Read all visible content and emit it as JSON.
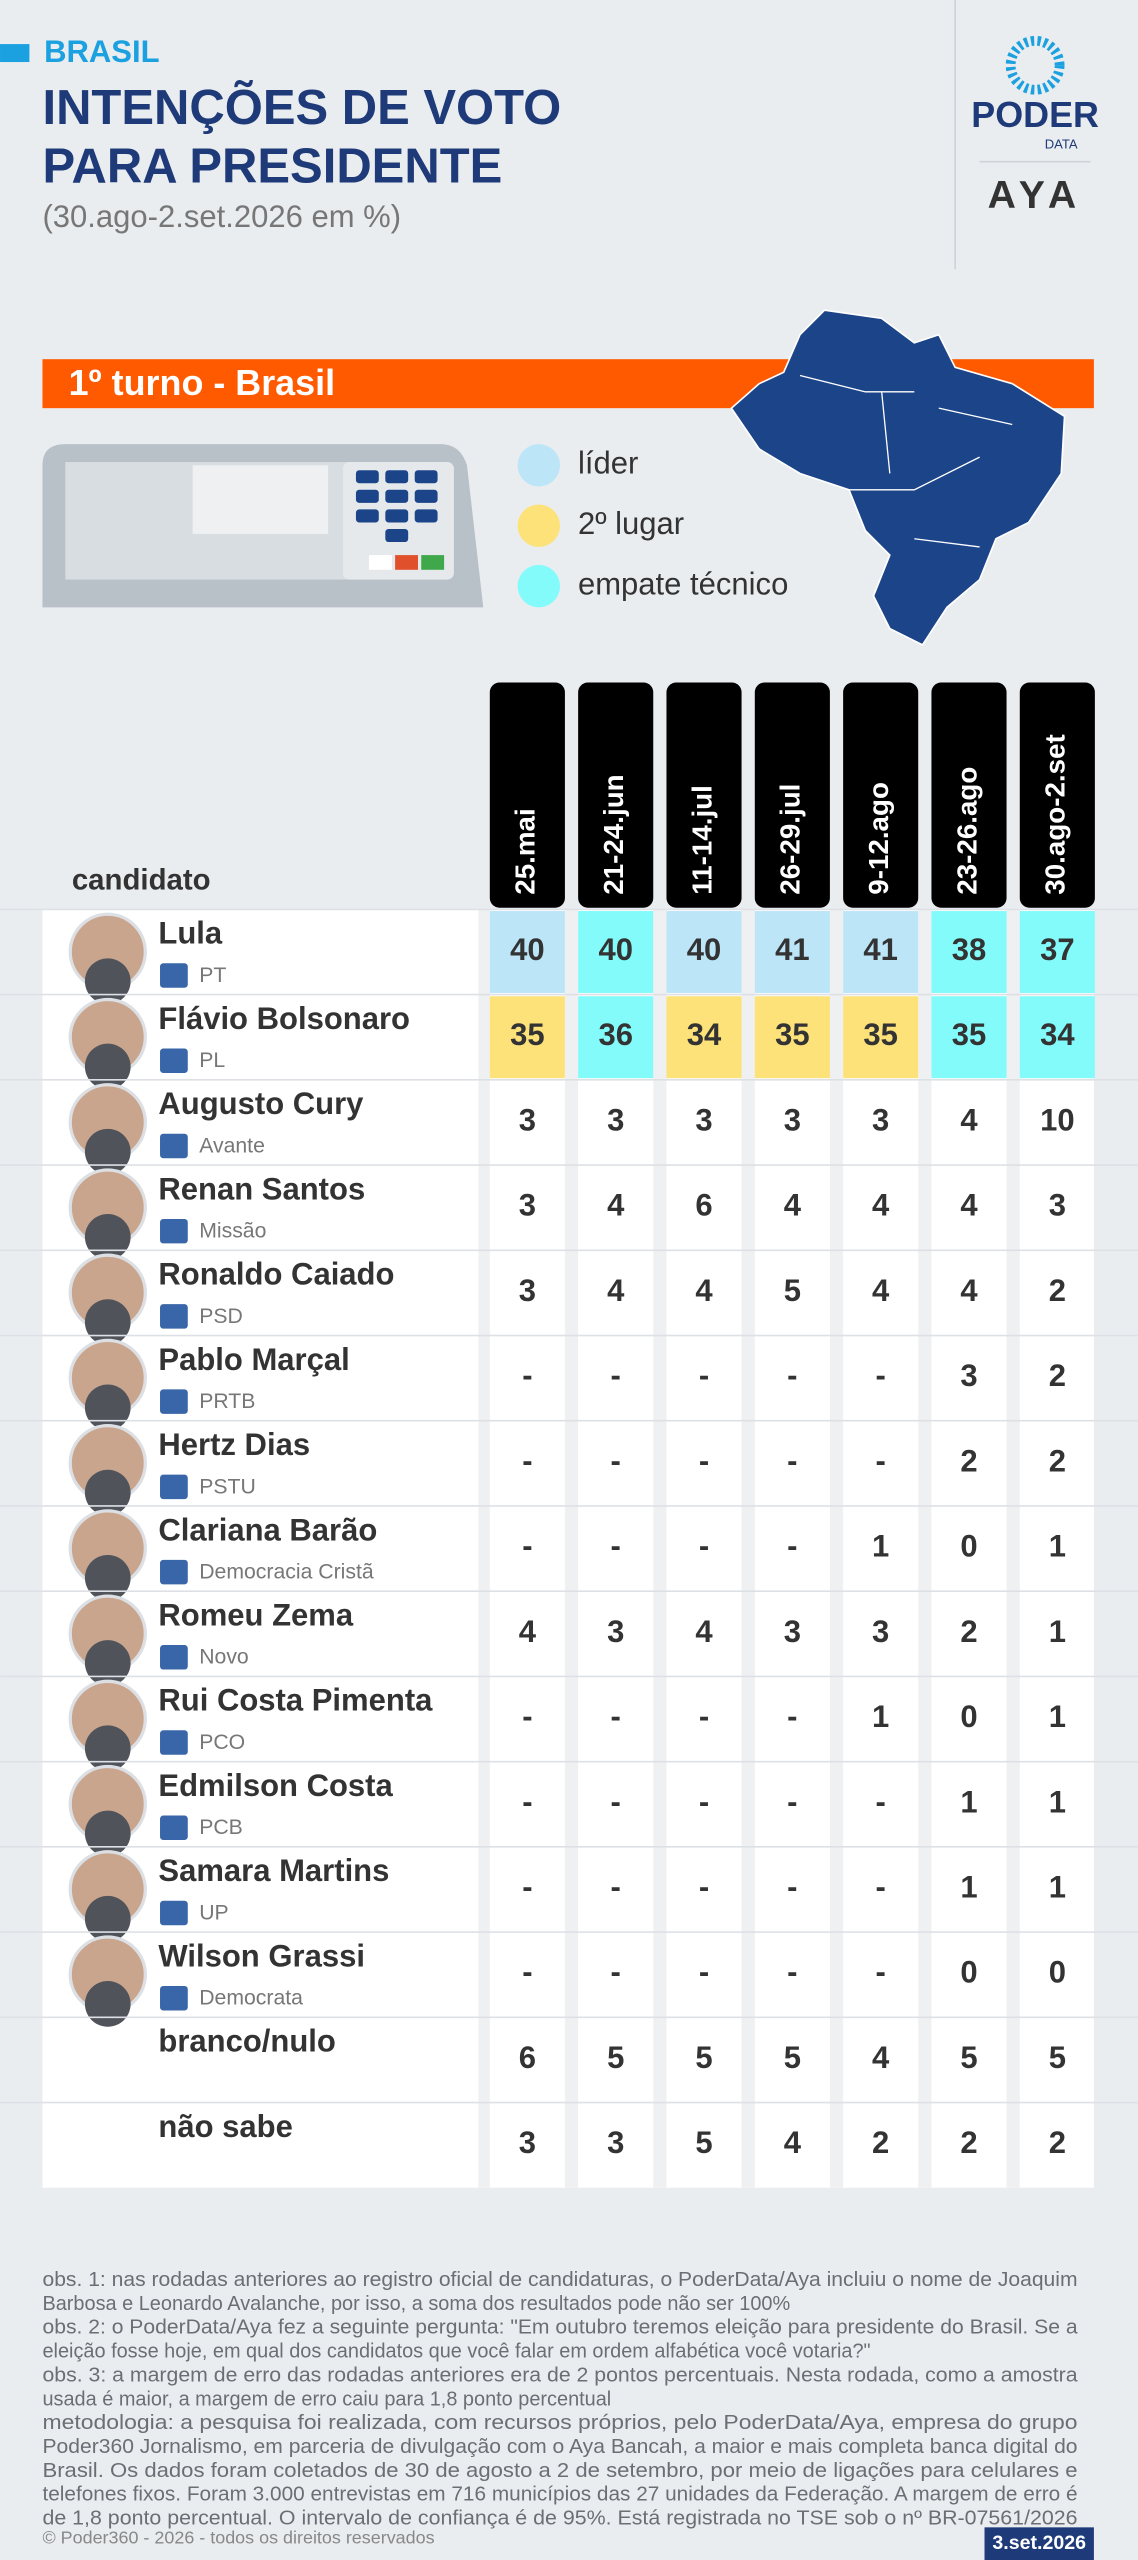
{
  "header": {
    "kicker": "BRASIL",
    "title": [
      "INTENÇÕES DE VOTO",
      "PARA PRESIDENTE"
    ],
    "subtitle": "(30.ago-2.set.2026 em %)"
  },
  "logos": {
    "poder": "PODER",
    "data": "DATA",
    "aya": "AYA"
  },
  "banner": "1º turno - Brasil",
  "legend": [
    {
      "label": "líder",
      "key": "lider",
      "color": "#bde5f8"
    },
    {
      "label": "2º lugar",
      "key": "segundo",
      "color": "#fde27a"
    },
    {
      "label": "empate técnico",
      "key": "empate",
      "color": "#84fbfb"
    }
  ],
  "table": {
    "candidate_header": "candidato",
    "dates": [
      "25.mai",
      "21-24.jun",
      "11-14.jul",
      "26-29.jul",
      "9-12.ago",
      "23-26.ago",
      "30.ago-2.set"
    ],
    "rows": [
      {
        "name": "Lula",
        "party": "PT",
        "values": [
          40,
          40,
          40,
          41,
          41,
          38,
          37
        ],
        "highlights": [
          "lider",
          "empate",
          "lider",
          "lider",
          "lider",
          "empate",
          "empate"
        ]
      },
      {
        "name": "Flávio Bolsonaro",
        "party": "PL",
        "values": [
          35,
          36,
          34,
          35,
          35,
          35,
          34
        ],
        "highlights": [
          "segundo",
          "empate",
          "segundo",
          "segundo",
          "segundo",
          "empate",
          "empate"
        ]
      },
      {
        "name": "Augusto Cury",
        "party": "Avante",
        "values": [
          3,
          3,
          3,
          3,
          3,
          4,
          10
        ]
      },
      {
        "name": "Renan Santos",
        "party": "Missão",
        "values": [
          3,
          4,
          6,
          4,
          4,
          4,
          3
        ]
      },
      {
        "name": "Ronaldo Caiado",
        "party": "PSD",
        "values": [
          3,
          4,
          4,
          5,
          4,
          4,
          2
        ]
      },
      {
        "name": "Pablo Marçal",
        "party": "PRTB",
        "values": [
          "-",
          "-",
          "-",
          "-",
          "-",
          3,
          2
        ]
      },
      {
        "name": "Hertz Dias",
        "party": "PSTU",
        "values": [
          "-",
          "-",
          "-",
          "-",
          "-",
          2,
          2
        ]
      },
      {
        "name": "Clariana Barão",
        "party": "Democracia Cristã",
        "values": [
          "-",
          "-",
          "-",
          "-",
          1,
          0,
          1
        ]
      },
      {
        "name": "Romeu Zema",
        "party": "Novo",
        "values": [
          4,
          3,
          4,
          3,
          3,
          2,
          1
        ]
      },
      {
        "name": "Rui Costa Pimenta",
        "party": "PCO",
        "values": [
          "-",
          "-",
          "-",
          "-",
          1,
          0,
          1
        ]
      },
      {
        "name": "Edmilson Costa",
        "party": "PCB",
        "values": [
          "-",
          "-",
          "-",
          "-",
          "-",
          1,
          1
        ]
      },
      {
        "name": "Samara Martins",
        "party": "UP",
        "values": [
          "-",
          "-",
          "-",
          "-",
          "-",
          1,
          1
        ]
      },
      {
        "name": "Wilson Grassi",
        "party": "Democrata",
        "values": [
          "-",
          "-",
          "-",
          "-",
          "-",
          0,
          0
        ]
      },
      {
        "name": "branco/nulo",
        "values": [
          6,
          5,
          5,
          5,
          4,
          5,
          5
        ]
      },
      {
        "name": "não sabe",
        "values": [
          3,
          3,
          5,
          4,
          2,
          2,
          2
        ]
      }
    ]
  },
  "notes": [
    "obs. 1: nas rodadas anteriores ao registro oficial de candidaturas, o PoderData/Aya incluiu o nome de Joaquim",
    "Barbosa e Leonardo Avalanche, por isso, a soma dos resultados pode não ser 100%",
    "obs. 2: o PoderData/Aya fez a seguinte pergunta: \"Em outubro teremos eleição para presidente do Brasil. Se a",
    "eleição fosse hoje, em qual dos candidatos que você falar em ordem alfabética você votaria?\"",
    "obs. 3: a margem de erro das rodadas anteriores era de 2 pontos percentuais. Nesta rodada, como a amostra",
    "usada é maior, a margem de erro caiu para 1,8 ponto percentual",
    "metodologia: a pesquisa foi realizada, com recursos próprios, pelo PoderData/Aya, empresa do grupo",
    "Poder360 Jornalismo, em parceria de divulgação com o Aya Bancah, a maior e mais completa banca digital do",
    "Brasil. Os dados foram coletados de 30 de agosto a 2 de setembro, por meio de ligações para celulares e",
    "telefones fixos. Foram 3.000 entrevistas em 716 municípios das 27 unidades da Federação. A margem de erro é",
    "de 1,8 ponto percentual. O intervalo de confiança é de 95%. Está registrada no TSE sob o nº BR-07561/2026"
  ],
  "footer": {
    "copyright": "© Poder360 - 2026 - todos os direitos reservados",
    "date": "3.set.2026"
  }
}
